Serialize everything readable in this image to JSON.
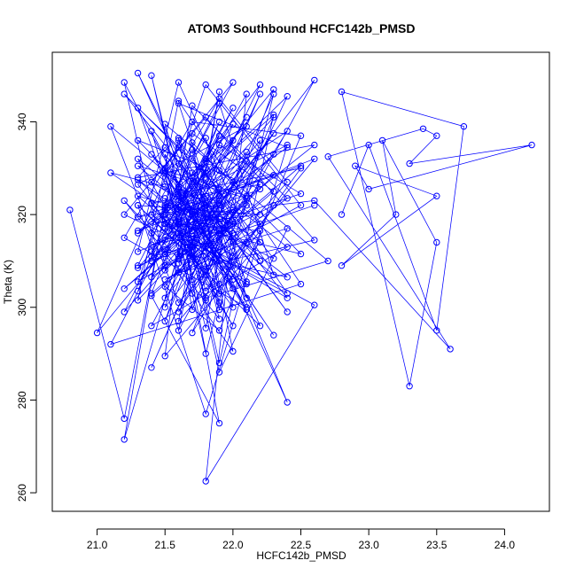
{
  "chart_data": {
    "type": "line",
    "title": "ATOM3 Southbound HCFC142b_PMSD",
    "xlabel": "HCFC142b_PMSD",
    "ylabel": "Theta (K)",
    "xlim": [
      20.67,
      24.33
    ],
    "ylim": [
      256,
      355
    ],
    "xticks": [
      "21.0",
      "21.5",
      "22.0",
      "22.5",
      "23.0",
      "23.5",
      "24.0"
    ],
    "yticks": [
      "260",
      "280",
      "300",
      "320",
      "340"
    ],
    "marker": "open-circle",
    "grid": false,
    "series_color": "#0000ff",
    "points": [
      [
        20.8,
        321.0
      ],
      [
        21.2,
        276.0
      ],
      [
        21.6,
        336.5
      ],
      [
        22.4,
        279.5
      ],
      [
        21.3,
        350.5
      ],
      [
        21.9,
        314.5
      ],
      [
        21.4,
        311.0
      ],
      [
        22.1,
        324.0
      ],
      [
        21.5,
        329.5
      ],
      [
        21.7,
        316.5
      ],
      [
        21.2,
        304.0
      ],
      [
        22.3,
        333.0
      ],
      [
        21.3,
        301.5
      ],
      [
        21.6,
        344.5
      ],
      [
        22.5,
        305.0
      ],
      [
        21.1,
        292.0
      ],
      [
        22.0,
        343.0
      ],
      [
        21.5,
        317.0
      ],
      [
        22.4,
        303.0
      ],
      [
        21.8,
        329.0
      ],
      [
        21.9,
        346.5
      ],
      [
        21.6,
        297.0
      ],
      [
        22.2,
        318.0
      ],
      [
        21.3,
        343.0
      ],
      [
        21.8,
        302.0
      ],
      [
        22.7,
        310.0
      ],
      [
        21.5,
        339.5
      ],
      [
        21.9,
        299.5
      ],
      [
        22.3,
        346.0
      ],
      [
        21.4,
        287.0
      ],
      [
        22.1,
        333.5
      ],
      [
        21.0,
        294.5
      ],
      [
        21.6,
        334.5
      ],
      [
        22.2,
        296.0
      ],
      [
        21.3,
        322.0
      ],
      [
        21.8,
        277.0
      ],
      [
        22.4,
        335.0
      ],
      [
        21.5,
        321.5
      ],
      [
        22.0,
        348.5
      ],
      [
        21.2,
        320.0
      ],
      [
        21.7,
        313.0
      ],
      [
        22.6,
        322.0
      ],
      [
        21.3,
        309.0
      ],
      [
        21.9,
        344.0
      ],
      [
        22.3,
        307.0
      ],
      [
        21.5,
        326.0
      ],
      [
        21.1,
        329.0
      ],
      [
        22.0,
        311.0
      ],
      [
        21.6,
        324.5
      ],
      [
        22.5,
        330.0
      ],
      [
        21.8,
        301.5
      ],
      [
        21.4,
        350.0
      ],
      [
        21.9,
        286.0
      ],
      [
        22.4,
        317.0
      ],
      [
        21.5,
        309.0
      ],
      [
        21.2,
        348.5
      ],
      [
        22.0,
        304.0
      ],
      [
        21.6,
        322.0
      ],
      [
        22.3,
        347.0
      ],
      [
        21.8,
        307.0
      ],
      [
        21.5,
        319.0
      ],
      [
        21.3,
        326.5
      ],
      [
        22.1,
        339.0
      ],
      [
        21.7,
        329.0
      ],
      [
        22.4,
        313.0
      ],
      [
        21.4,
        296.0
      ],
      [
        21.9,
        324.0
      ],
      [
        22.2,
        310.0
      ],
      [
        21.6,
        348.5
      ],
      [
        21.3,
        312.0
      ],
      [
        22.0,
        321.0
      ],
      [
        21.5,
        304.5
      ],
      [
        21.9,
        295.0
      ],
      [
        22.5,
        337.0
      ],
      [
        21.7,
        340.0
      ],
      [
        21.2,
        315.0
      ],
      [
        22.1,
        300.0
      ],
      [
        21.6,
        324.0
      ],
      [
        22.3,
        294.0
      ],
      [
        21.4,
        333.0
      ],
      [
        21.9,
        316.5
      ],
      [
        21.5,
        318.0
      ],
      [
        22.6,
        300.5
      ],
      [
        21.8,
        262.5
      ],
      [
        22.1,
        346.0
      ],
      [
        21.3,
        303.5
      ],
      [
        21.7,
        334.0
      ],
      [
        22.0,
        290.5
      ],
      [
        21.5,
        311.5
      ],
      [
        21.9,
        325.5
      ],
      [
        21.2,
        346.0
      ],
      [
        22.4,
        302.0
      ],
      [
        21.6,
        316.0
      ],
      [
        21.8,
        290.0
      ],
      [
        22.2,
        336.0
      ],
      [
        21.4,
        306.5
      ],
      [
        22.0,
        318.5
      ],
      [
        21.5,
        334.5
      ],
      [
        21.3,
        328.0
      ],
      [
        22.6,
        335.0
      ],
      [
        21.7,
        314.0
      ],
      [
        21.9,
        301.0
      ],
      [
        21.6,
        336.0
      ],
      [
        22.3,
        310.5
      ],
      [
        21.5,
        322.0
      ],
      [
        21.2,
        271.5
      ],
      [
        21.8,
        332.0
      ],
      [
        22.1,
        305.0
      ],
      [
        21.4,
        320.0
      ],
      [
        21.9,
        345.0
      ],
      [
        22.4,
        327.0
      ],
      [
        21.6,
        301.0
      ],
      [
        21.1,
        339.0
      ],
      [
        21.8,
        322.0
      ],
      [
        22.2,
        314.0
      ],
      [
        21.5,
        289.5
      ],
      [
        21.7,
        337.5
      ],
      [
        22.3,
        325.0
      ],
      [
        21.4,
        302.5
      ],
      [
        21.9,
        275.0
      ],
      [
        21.6,
        321.0
      ],
      [
        22.0,
        318.0
      ],
      [
        21.3,
        305.5
      ],
      [
        21.8,
        348.0
      ],
      [
        22.5,
        322.0
      ],
      [
        21.5,
        306.0
      ],
      [
        22.1,
        314.0
      ],
      [
        21.7,
        294.5
      ],
      [
        21.9,
        310.0
      ],
      [
        21.4,
        338.0
      ],
      [
        21.6,
        318.0
      ],
      [
        22.2,
        320.0
      ],
      [
        21.3,
        322.0
      ],
      [
        21.8,
        308.0
      ],
      [
        22.4,
        345.5
      ],
      [
        21.5,
        320.0
      ],
      [
        22.0,
        300.0
      ],
      [
        21.7,
        328.0
      ],
      [
        21.2,
        299.0
      ],
      [
        21.9,
        322.5
      ],
      [
        22.6,
        349.0
      ],
      [
        21.6,
        295.0
      ],
      [
        21.8,
        324.0
      ],
      [
        22.1,
        305.5
      ],
      [
        21.5,
        320.0
      ],
      [
        21.3,
        316.0
      ],
      [
        22.3,
        341.5
      ],
      [
        21.9,
        288.0
      ],
      [
        21.6,
        326.0
      ],
      [
        22.0,
        336.0
      ],
      [
        21.4,
        310.0
      ],
      [
        21.7,
        314.0
      ],
      [
        22.2,
        346.0
      ],
      [
        21.5,
        297.0
      ],
      [
        21.8,
        322.5
      ],
      [
        22.4,
        299.0
      ],
      [
        21.6,
        331.0
      ],
      [
        21.9,
        319.0
      ],
      [
        21.3,
        324.0
      ],
      [
        22.0,
        306.0
      ],
      [
        21.7,
        318.5
      ],
      [
        22.1,
        322.0
      ],
      [
        21.5,
        300.0
      ],
      [
        21.9,
        335.0
      ],
      [
        22.5,
        324.5
      ],
      [
        21.4,
        313.5
      ],
      [
        21.8,
        316.0
      ],
      [
        22.3,
        337.5
      ],
      [
        21.6,
        310.5
      ],
      [
        21.2,
        323.0
      ],
      [
        21.9,
        297.5
      ],
      [
        21.7,
        320.5
      ],
      [
        22.1,
        341.0
      ],
      [
        21.5,
        312.5
      ],
      [
        22.4,
        306.5
      ],
      [
        21.8,
        320.0
      ],
      [
        21.3,
        332.0
      ],
      [
        22.0,
        296.0
      ],
      [
        21.6,
        315.0
      ],
      [
        21.9,
        329.5
      ],
      [
        22.2,
        348.0
      ],
      [
        21.5,
        321.0
      ],
      [
        21.7,
        303.0
      ],
      [
        22.0,
        316.0
      ],
      [
        21.4,
        327.0
      ],
      [
        21.8,
        341.0
      ],
      [
        22.6,
        314.5
      ],
      [
        21.6,
        307.5
      ],
      [
        21.9,
        322.0
      ],
      [
        21.3,
        319.5
      ],
      [
        22.3,
        328.5
      ],
      [
        21.7,
        311.0
      ],
      [
        21.5,
        330.0
      ],
      [
        22.1,
        302.0
      ],
      [
        21.8,
        336.5
      ],
      [
        21.4,
        316.0
      ],
      [
        22.0,
        320.5
      ],
      [
        21.6,
        299.0
      ],
      [
        21.9,
        313.0
      ],
      [
        22.4,
        323.5
      ],
      [
        21.7,
        343.5
      ],
      [
        21.5,
        308.0
      ],
      [
        21.9,
        318.0
      ],
      [
        21.3,
        336.0
      ],
      [
        22.2,
        325.5
      ],
      [
        21.6,
        318.5
      ],
      [
        21.8,
        295.5
      ],
      [
        22.0,
        327.0
      ],
      [
        21.5,
        314.5
      ],
      [
        21.9,
        340.0
      ],
      [
        21.4,
        303.0
      ],
      [
        22.5,
        330.5
      ],
      [
        21.7,
        322.0
      ],
      [
        21.6,
        311.0
      ],
      [
        22.1,
        331.5
      ],
      [
        21.8,
        317.0
      ],
      [
        21.3,
        327.5
      ],
      [
        22.0,
        309.0
      ],
      [
        21.6,
        344.0
      ],
      [
        22.4,
        334.5
      ],
      [
        21.7,
        320.0
      ],
      [
        21.5,
        323.5
      ],
      [
        21.9,
        305.0
      ],
      [
        22.2,
        316.5
      ],
      [
        21.4,
        318.5
      ],
      [
        22.6,
        332.0
      ],
      [
        21.8,
        303.5
      ],
      [
        21.6,
        325.5
      ],
      [
        21.9,
        321.0
      ],
      [
        21.3,
        308.5
      ],
      [
        22.3,
        341.0
      ],
      [
        21.7,
        299.5
      ],
      [
        21.5,
        333.0
      ],
      [
        22.0,
        314.0
      ],
      [
        21.8,
        327.5
      ],
      [
        21.4,
        312.0
      ],
      [
        21.9,
        337.0
      ],
      [
        21.6,
        320.5
      ],
      [
        22.1,
        299.5
      ],
      [
        21.5,
        329.0
      ],
      [
        21.7,
        306.0
      ],
      [
        22.4,
        338.0
      ],
      [
        21.3,
        316.5
      ],
      [
        21.9,
        323.0
      ],
      [
        21.6,
        309.5
      ],
      [
        22.0,
        339.5
      ],
      [
        21.5,
        318.0
      ],
      [
        21.8,
        313.0
      ],
      [
        22.2,
        326.5
      ],
      [
        21.4,
        322.5
      ],
      [
        21.9,
        303.0
      ],
      [
        21.7,
        335.5
      ],
      [
        22.5,
        311.5
      ],
      [
        21.6,
        318.0
      ],
      [
        21.8,
        330.0
      ],
      [
        21.5,
        302.0
      ],
      [
        22.1,
        323.5
      ],
      [
        21.3,
        330.5
      ],
      [
        21.9,
        316.0
      ],
      [
        22.3,
        322.0
      ],
      [
        22.6,
        323.0
      ],
      [
        23.6,
        291.0
      ],
      [
        22.7,
        332.5
      ],
      [
        23.4,
        338.5
      ],
      [
        23.5,
        337.0
      ],
      [
        23.3,
        331.0
      ],
      [
        24.2,
        335.0
      ],
      [
        23.0,
        325.5
      ],
      [
        22.9,
        330.5
      ],
      [
        23.5,
        324.0
      ],
      [
        22.8,
        309.0
      ],
      [
        23.2,
        320.0
      ],
      [
        23.1,
        336.0
      ],
      [
        23.5,
        314.0
      ],
      [
        23.3,
        283.0
      ],
      [
        22.8,
        346.5
      ],
      [
        23.7,
        339.0
      ],
      [
        23.5,
        295.0
      ],
      [
        23.0,
        335.0
      ],
      [
        22.8,
        320.0
      ]
    ]
  }
}
